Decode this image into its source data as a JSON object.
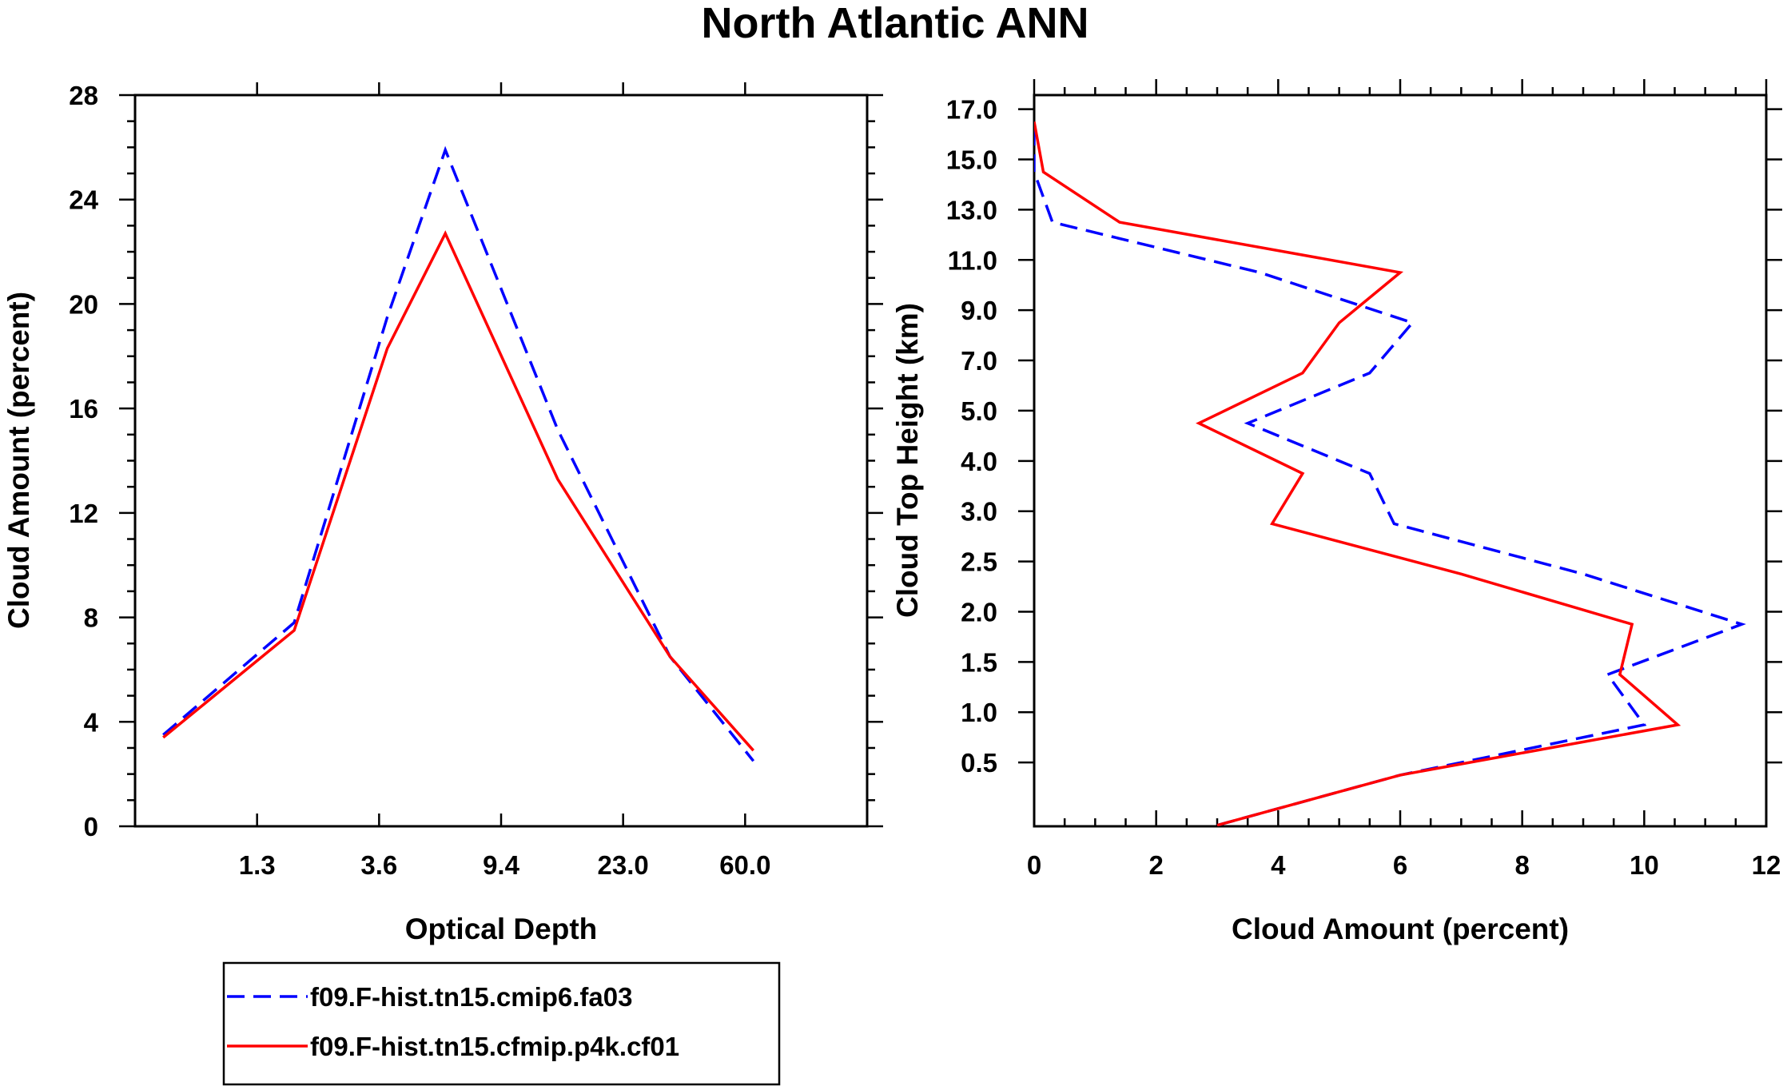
{
  "figure": {
    "title": "North Atlantic ANN"
  },
  "legend": {
    "items": [
      {
        "label": "f09.F-hist.tn15.cmip6.fa03",
        "color": "#0000ff",
        "dash": "dashed"
      },
      {
        "label": "f09.F-hist.tn15.cfmip.p4k.cf01",
        "color": "#ff0000",
        "dash": "solid"
      }
    ]
  },
  "chart_data": [
    {
      "type": "line",
      "xlabel": "Optical Depth",
      "ylabel": "Cloud Amount (percent)",
      "x_tick_labels": [
        "1.3",
        "3.6",
        "9.4",
        "23.0",
        "60.0"
      ],
      "y_tick_labels": [
        "0",
        "4",
        "8",
        "12",
        "16",
        "20",
        "24",
        "28"
      ],
      "ylim": [
        0,
        28
      ],
      "grid": false,
      "series": [
        {
          "name": "f09.F-hist.tn15.cmip6.fa03",
          "color": "#0000ff",
          "dash": "dashed",
          "x": [
            0.3,
            2.0,
            3.99,
            6.75,
            15.7,
            37.2,
            81.8
          ],
          "values": [
            3.5,
            7.8,
            19.5,
            25.9,
            15.2,
            6.5,
            2.5
          ]
        },
        {
          "name": "f09.F-hist.tn15.cfmip.p4k.cf01",
          "color": "#ff0000",
          "dash": "solid",
          "x": [
            0.3,
            2.0,
            3.99,
            6.75,
            15.7,
            37.2,
            81.8
          ],
          "values": [
            3.4,
            7.5,
            18.3,
            22.7,
            13.3,
            6.5,
            2.9
          ]
        }
      ]
    },
    {
      "type": "line",
      "xlabel": "Cloud Amount (percent)",
      "ylabel": "Cloud Top Height (km)",
      "x_tick_labels": [
        "0",
        "2",
        "4",
        "6",
        "8",
        "10",
        "12"
      ],
      "xlim": [
        0,
        12
      ],
      "y_tick_labels": [
        "0.5",
        "1.0",
        "1.5",
        "2.0",
        "2.5",
        "3.0",
        "4.0",
        "5.0",
        "7.0",
        "9.0",
        "11.0",
        "13.0",
        "15.0",
        "17.0"
      ],
      "grid": false,
      "series": [
        {
          "name": "f09.F-hist.tn15.cmip6.fa03",
          "color": "#0000ff",
          "dash": "dashed",
          "height_levels": [
            0,
            0.5,
            1.0,
            1.5,
            2.0,
            2.5,
            3.0,
            4.0,
            5.0,
            7.0,
            9.0,
            11.0,
            13.0,
            15.0,
            17.0
          ],
          "values": [
            3.0,
            6.0,
            10.0,
            9.4,
            11.6,
            9.0,
            5.9,
            5.5,
            3.5,
            5.5,
            6.2,
            3.7,
            0.3,
            0.0,
            0.0
          ]
        },
        {
          "name": "f09.F-hist.tn15.cfmip.p4k.cf01",
          "color": "#ff0000",
          "dash": "solid",
          "height_levels": [
            0,
            0.5,
            1.0,
            1.5,
            2.0,
            2.5,
            3.0,
            4.0,
            5.0,
            7.0,
            9.0,
            11.0,
            13.0,
            15.0,
            17.0
          ],
          "values": [
            3.0,
            6.0,
            10.55,
            9.6,
            9.8,
            7.0,
            3.9,
            4.4,
            2.7,
            4.4,
            5.0,
            6.0,
            1.4,
            0.15,
            0.0
          ]
        }
      ]
    }
  ]
}
